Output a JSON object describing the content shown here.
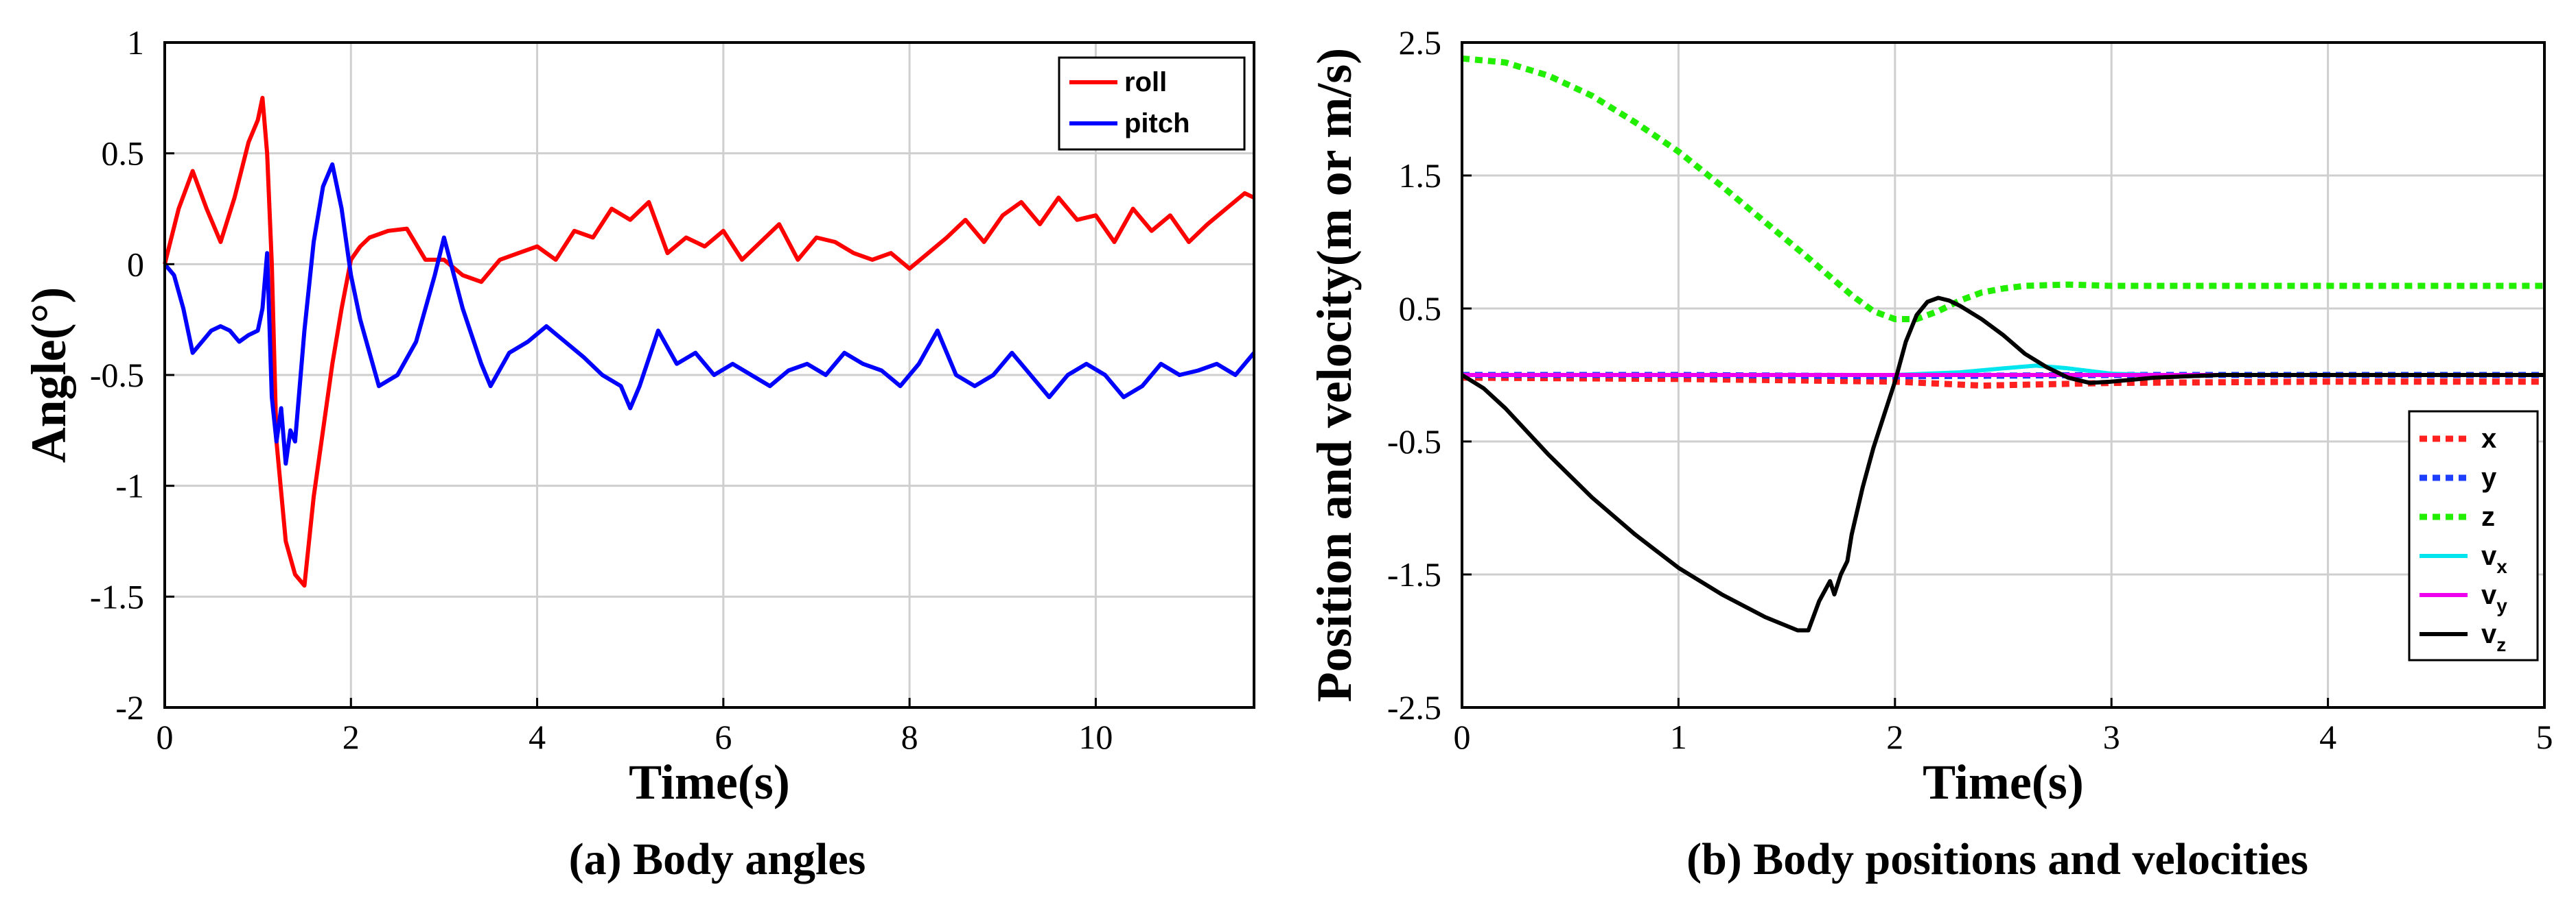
{
  "chart_data": [
    {
      "type": "line",
      "caption": "(a) Body angles",
      "xlabel": "Time(s)",
      "ylabel": "Angle(°)",
      "xlim": [
        0,
        11.7
      ],
      "ylim": [
        -2,
        1
      ],
      "xticks": [
        0,
        2,
        4,
        6,
        8,
        10
      ],
      "xtick_labels": [
        "0",
        "2",
        "4",
        "6",
        "8",
        "10"
      ],
      "yticks": [
        1,
        0.5,
        0,
        -0.5,
        -1,
        -1.5,
        -2
      ],
      "ytick_labels": [
        "1",
        "0.5",
        "0",
        "-0.5",
        "-1",
        "-1.5",
        "-2"
      ],
      "grid": true,
      "legend_position": "top-right",
      "series": [
        {
          "name": "roll",
          "color": "#ff0000",
          "dash": "solid",
          "x": [
            0,
            0.15,
            0.3,
            0.45,
            0.6,
            0.75,
            0.9,
            1.0,
            1.05,
            1.1,
            1.15,
            1.2,
            1.3,
            1.4,
            1.5,
            1.6,
            1.7,
            1.8,
            1.9,
            2.0,
            2.1,
            2.2,
            2.4,
            2.6,
            2.8,
            3.0,
            3.2,
            3.4,
            3.6,
            3.8,
            4.0,
            4.2,
            4.4,
            4.6,
            4.8,
            5.0,
            5.2,
            5.4,
            5.6,
            5.8,
            6.0,
            6.2,
            6.4,
            6.6,
            6.8,
            7.0,
            7.2,
            7.4,
            7.6,
            7.8,
            8.0,
            8.2,
            8.4,
            8.6,
            8.8,
            9.0,
            9.2,
            9.4,
            9.6,
            9.8,
            10.0,
            10.2,
            10.4,
            10.6,
            10.8,
            11.0,
            11.2,
            11.4,
            11.6,
            11.7
          ],
          "y": [
            0.0,
            0.25,
            0.42,
            0.25,
            0.1,
            0.3,
            0.55,
            0.65,
            0.75,
            0.5,
            0.0,
            -0.8,
            -1.25,
            -1.4,
            -1.45,
            -1.05,
            -0.75,
            -0.45,
            -0.2,
            0.02,
            0.08,
            0.12,
            0.15,
            0.16,
            0.02,
            0.02,
            -0.05,
            -0.08,
            0.02,
            0.05,
            0.08,
            0.02,
            0.15,
            0.12,
            0.25,
            0.2,
            0.28,
            0.05,
            0.12,
            0.08,
            0.15,
            0.02,
            0.1,
            0.18,
            0.02,
            0.12,
            0.1,
            0.05,
            0.02,
            0.05,
            -0.02,
            0.05,
            0.12,
            0.2,
            0.1,
            0.22,
            0.28,
            0.18,
            0.3,
            0.2,
            0.22,
            0.1,
            0.25,
            0.15,
            0.22,
            0.1,
            0.18,
            0.25,
            0.32,
            0.3
          ]
        },
        {
          "name": "pitch",
          "color": "#0000ff",
          "dash": "solid",
          "x": [
            0,
            0.1,
            0.2,
            0.3,
            0.4,
            0.5,
            0.6,
            0.7,
            0.8,
            0.9,
            1.0,
            1.05,
            1.1,
            1.15,
            1.2,
            1.25,
            1.3,
            1.35,
            1.4,
            1.5,
            1.6,
            1.7,
            1.8,
            1.9,
            2.0,
            2.1,
            2.2,
            2.3,
            2.5,
            2.7,
            2.9,
            3.0,
            3.2,
            3.4,
            3.5,
            3.7,
            3.9,
            4.1,
            4.3,
            4.5,
            4.7,
            4.9,
            5.0,
            5.1,
            5.3,
            5.5,
            5.7,
            5.9,
            6.1,
            6.3,
            6.5,
            6.7,
            6.9,
            7.1,
            7.3,
            7.5,
            7.7,
            7.9,
            8.1,
            8.3,
            8.5,
            8.7,
            8.9,
            9.1,
            9.3,
            9.5,
            9.7,
            9.9,
            10.1,
            10.3,
            10.5,
            10.7,
            10.9,
            11.1,
            11.3,
            11.5,
            11.7
          ],
          "y": [
            0.0,
            -0.05,
            -0.2,
            -0.4,
            -0.35,
            -0.3,
            -0.28,
            -0.3,
            -0.35,
            -0.32,
            -0.3,
            -0.2,
            0.05,
            -0.6,
            -0.8,
            -0.65,
            -0.9,
            -0.75,
            -0.8,
            -0.3,
            0.1,
            0.35,
            0.45,
            0.25,
            -0.05,
            -0.25,
            -0.4,
            -0.55,
            -0.5,
            -0.35,
            -0.05,
            0.12,
            -0.2,
            -0.45,
            -0.55,
            -0.4,
            -0.35,
            -0.28,
            -0.35,
            -0.42,
            -0.5,
            -0.55,
            -0.65,
            -0.55,
            -0.3,
            -0.45,
            -0.4,
            -0.5,
            -0.45,
            -0.5,
            -0.55,
            -0.48,
            -0.45,
            -0.5,
            -0.4,
            -0.45,
            -0.48,
            -0.55,
            -0.45,
            -0.3,
            -0.5,
            -0.55,
            -0.5,
            -0.4,
            -0.5,
            -0.6,
            -0.5,
            -0.45,
            -0.5,
            -0.6,
            -0.55,
            -0.45,
            -0.5,
            -0.48,
            -0.45,
            -0.5,
            -0.4
          ]
        }
      ]
    },
    {
      "type": "line",
      "caption": "(b) Body positions and velocities",
      "xlabel": "Time(s)",
      "ylabel": "Position and velocity(m or m/s)",
      "xlim": [
        0,
        5
      ],
      "ylim": [
        -2.5,
        2.5
      ],
      "xticks": [
        0,
        1,
        2,
        3,
        4,
        5
      ],
      "xtick_labels": [
        "0",
        "1",
        "2",
        "3",
        "4",
        "5"
      ],
      "yticks": [
        2.5,
        1.5,
        0.5,
        -0.5,
        -1.5,
        -2.5
      ],
      "ytick_labels": [
        "2.5",
        "1.5",
        "0.5",
        "-0.5",
        "-1.5",
        "-2.5"
      ],
      "grid": true,
      "legend_position": "bottom-right",
      "series": [
        {
          "name": "x",
          "subscript": "",
          "color": "#ff2020",
          "dash": "dotted",
          "x": [
            0,
            1,
            2,
            2.4,
            3,
            4,
            5
          ],
          "y": [
            -0.02,
            -0.03,
            -0.05,
            -0.08,
            -0.06,
            -0.05,
            -0.05
          ]
        },
        {
          "name": "y",
          "subscript": "",
          "color": "#1f3fff",
          "dash": "dotted",
          "x": [
            0,
            1,
            2,
            3,
            4,
            5
          ],
          "y": [
            0.0,
            0.0,
            -0.01,
            0.0,
            0.0,
            0.0
          ]
        },
        {
          "name": "z",
          "subscript": "",
          "color": "#22ee00",
          "dash": "dotted",
          "x": [
            0,
            0.2,
            0.4,
            0.6,
            0.8,
            1.0,
            1.2,
            1.4,
            1.6,
            1.8,
            1.9,
            2.0,
            2.1,
            2.2,
            2.3,
            2.4,
            2.5,
            2.6,
            2.8,
            3.0,
            3.5,
            4.0,
            4.5,
            5.0
          ],
          "y": [
            2.38,
            2.35,
            2.25,
            2.1,
            1.9,
            1.68,
            1.42,
            1.15,
            0.88,
            0.6,
            0.48,
            0.42,
            0.42,
            0.48,
            0.56,
            0.62,
            0.65,
            0.67,
            0.68,
            0.67,
            0.67,
            0.67,
            0.67,
            0.67
          ]
        },
        {
          "name": "v",
          "subscript": "x",
          "color": "#00e5ee",
          "dash": "solid",
          "x": [
            0,
            1,
            2,
            2.3,
            2.5,
            2.65,
            2.8,
            3.0,
            3.2,
            4,
            5
          ],
          "y": [
            0.0,
            0.0,
            0.0,
            0.02,
            0.05,
            0.07,
            0.05,
            0.01,
            0.0,
            0.0,
            0.0
          ]
        },
        {
          "name": "v",
          "subscript": "y",
          "color": "#ee00ee",
          "dash": "solid",
          "x": [
            0,
            1,
            2,
            3,
            4,
            5
          ],
          "y": [
            0.0,
            0.0,
            0.0,
            0.0,
            0.0,
            0.0
          ]
        },
        {
          "name": "v",
          "subscript": "z",
          "color": "#000000",
          "dash": "solid",
          "x": [
            0,
            0.05,
            0.1,
            0.2,
            0.4,
            0.6,
            0.8,
            1.0,
            1.2,
            1.4,
            1.55,
            1.6,
            1.65,
            1.7,
            1.72,
            1.75,
            1.78,
            1.8,
            1.85,
            1.9,
            1.95,
            2.0,
            2.05,
            2.1,
            2.15,
            2.2,
            2.25,
            2.3,
            2.4,
            2.5,
            2.6,
            2.7,
            2.8,
            2.9,
            3.0,
            3.2,
            3.5,
            4.0,
            4.5,
            5.0
          ],
          "y": [
            0.0,
            -0.05,
            -0.1,
            -0.25,
            -0.6,
            -0.92,
            -1.2,
            -1.45,
            -1.65,
            -1.82,
            -1.92,
            -1.92,
            -1.7,
            -1.55,
            -1.65,
            -1.5,
            -1.4,
            -1.2,
            -0.85,
            -0.55,
            -0.3,
            -0.05,
            0.25,
            0.45,
            0.55,
            0.58,
            0.56,
            0.52,
            0.42,
            0.3,
            0.16,
            0.06,
            -0.02,
            -0.06,
            -0.05,
            -0.02,
            0.0,
            0.0,
            0.0,
            0.0
          ]
        }
      ]
    }
  ]
}
